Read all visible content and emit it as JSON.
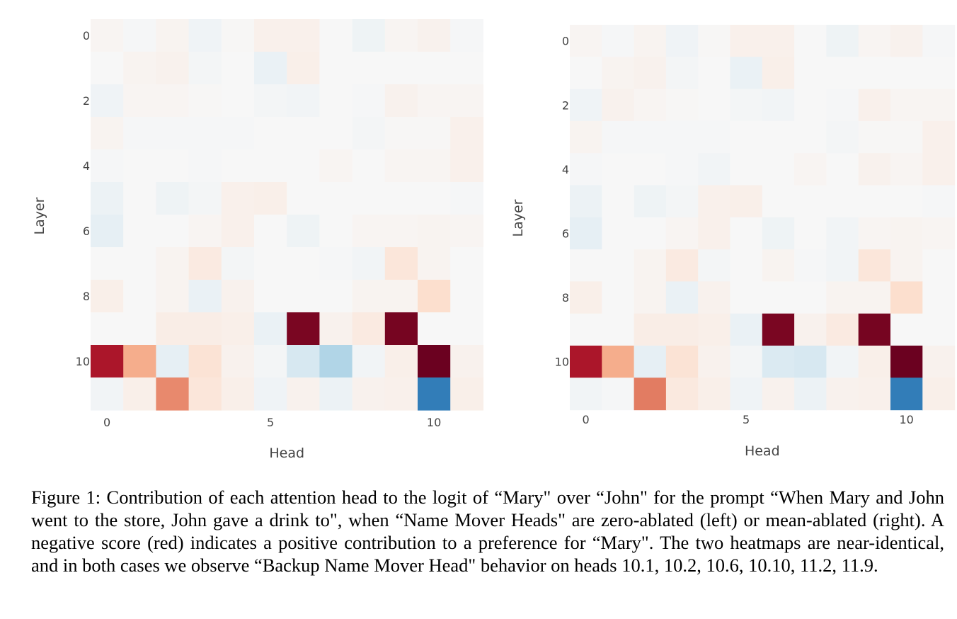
{
  "chart_data": [
    {
      "type": "heatmap",
      "title": "",
      "xlabel": "Head",
      "ylabel": "Layer",
      "x_tick_labels": [
        "0",
        "5",
        "10"
      ],
      "y_tick_labels": [
        "0",
        "2",
        "4",
        "6",
        "8",
        "10"
      ],
      "x_ticks": [
        0,
        5,
        10
      ],
      "y_ticks": [
        0,
        2,
        4,
        6,
        8,
        10
      ],
      "colorscale": "RdBu",
      "zrange": [
        -1,
        1
      ],
      "z": [
        [
          -0.02,
          0.01,
          -0.03,
          0.04,
          -0.01,
          -0.05,
          -0.05,
          0.0,
          0.05,
          -0.02,
          -0.04,
          0.01
        ],
        [
          0.0,
          -0.03,
          -0.04,
          0.02,
          0.0,
          0.07,
          -0.06,
          0.0,
          0.0,
          0.0,
          0.0,
          0.0
        ],
        [
          0.04,
          -0.02,
          -0.02,
          -0.01,
          0.0,
          0.02,
          0.03,
          0.0,
          0.01,
          -0.04,
          -0.02,
          -0.02
        ],
        [
          -0.03,
          0.01,
          0.01,
          0.01,
          0.01,
          0.0,
          0.0,
          0.0,
          0.02,
          -0.01,
          -0.01,
          -0.05
        ],
        [
          0.01,
          0.0,
          0.0,
          0.01,
          0.0,
          0.0,
          0.0,
          -0.02,
          0.0,
          -0.02,
          -0.02,
          -0.05
        ],
        [
          0.06,
          0.0,
          0.05,
          0.02,
          -0.05,
          -0.06,
          0.0,
          0.0,
          0.0,
          0.0,
          0.0,
          0.01
        ],
        [
          0.09,
          0.0,
          0.0,
          -0.02,
          -0.05,
          0.0,
          0.05,
          0.0,
          -0.02,
          -0.02,
          -0.03,
          -0.02
        ],
        [
          0.0,
          0.0,
          -0.03,
          -0.09,
          0.02,
          0.0,
          0.0,
          0.01,
          0.03,
          -0.12,
          -0.03,
          0.0
        ],
        [
          -0.06,
          0.0,
          -0.03,
          0.07,
          -0.04,
          0.0,
          0.0,
          0.0,
          -0.03,
          -0.03,
          -0.17,
          0.0
        ],
        [
          0.0,
          0.0,
          -0.07,
          -0.07,
          -0.06,
          0.07,
          -0.95,
          -0.04,
          -0.09,
          -0.96,
          0.0,
          0.0
        ],
        [
          -0.82,
          -0.37,
          0.09,
          -0.14,
          -0.04,
          0.02,
          0.17,
          0.3,
          0.03,
          -0.06,
          -0.99,
          -0.04
        ],
        [
          0.03,
          -0.06,
          -0.48,
          -0.12,
          -0.06,
          0.04,
          -0.04,
          0.06,
          -0.04,
          -0.05,
          0.7,
          -0.06
        ]
      ]
    },
    {
      "type": "heatmap",
      "title": "",
      "xlabel": "Head",
      "ylabel": "Layer",
      "x_tick_labels": [
        "0",
        "5",
        "10"
      ],
      "y_tick_labels": [
        "0",
        "2",
        "4",
        "6",
        "8",
        "10"
      ],
      "x_ticks": [
        0,
        5,
        10
      ],
      "y_ticks": [
        0,
        2,
        4,
        6,
        8,
        10
      ],
      "colorscale": "RdBu",
      "zrange": [
        -1,
        1
      ],
      "z": [
        [
          -0.02,
          0.01,
          -0.03,
          0.04,
          -0.01,
          -0.05,
          -0.05,
          0.0,
          0.05,
          -0.02,
          -0.04,
          0.01
        ],
        [
          0.0,
          -0.03,
          -0.04,
          0.02,
          0.0,
          0.07,
          -0.06,
          0.0,
          0.0,
          0.0,
          0.0,
          0.0
        ],
        [
          0.04,
          -0.04,
          -0.02,
          -0.01,
          0.0,
          0.02,
          0.03,
          0.0,
          0.01,
          -0.05,
          -0.02,
          -0.02
        ],
        [
          -0.03,
          0.01,
          0.01,
          0.01,
          0.01,
          0.0,
          0.0,
          0.0,
          0.02,
          -0.01,
          -0.01,
          -0.05
        ],
        [
          0.01,
          0.0,
          0.0,
          0.01,
          0.03,
          0.0,
          0.0,
          -0.02,
          0.0,
          -0.04,
          -0.02,
          -0.05
        ],
        [
          0.06,
          0.0,
          0.05,
          0.02,
          -0.05,
          -0.06,
          0.0,
          0.0,
          0.0,
          0.0,
          0.0,
          0.01
        ],
        [
          0.09,
          0.0,
          0.0,
          -0.02,
          -0.05,
          0.0,
          0.05,
          0.0,
          0.03,
          -0.02,
          -0.03,
          -0.02
        ],
        [
          0.0,
          0.0,
          -0.03,
          -0.09,
          0.02,
          0.0,
          -0.03,
          0.01,
          0.03,
          -0.12,
          -0.03,
          0.0
        ],
        [
          -0.06,
          0.0,
          -0.03,
          0.07,
          -0.04,
          0.0,
          0.0,
          0.0,
          -0.03,
          -0.03,
          -0.17,
          0.0
        ],
        [
          0.0,
          0.0,
          -0.07,
          -0.07,
          -0.06,
          0.07,
          -0.95,
          -0.04,
          -0.09,
          -0.96,
          0.0,
          0.0
        ],
        [
          -0.82,
          -0.37,
          0.09,
          -0.14,
          -0.04,
          0.02,
          0.15,
          0.17,
          0.03,
          -0.06,
          -0.99,
          -0.04
        ],
        [
          0.03,
          0.01,
          -0.52,
          -0.1,
          -0.06,
          0.04,
          -0.04,
          0.06,
          -0.04,
          -0.05,
          0.7,
          -0.06
        ]
      ]
    }
  ],
  "caption": "Figure 1: Contribution of each attention head to the logit of “Mary\" over “John\" for the prompt “When Mary and John went to the store, John gave a drink to\", when “Name Mover Heads\" are zero-ablated (left) or mean-ablated (right). A negative score (red) indicates a positive contribution to a preference for “Mary\". The two heatmaps are near-identical, and in both cases we observe “Backup Name Mover Head\" behavior on heads 10.1, 10.2, 10.6, 10.10, 11.2, 11.9."
}
